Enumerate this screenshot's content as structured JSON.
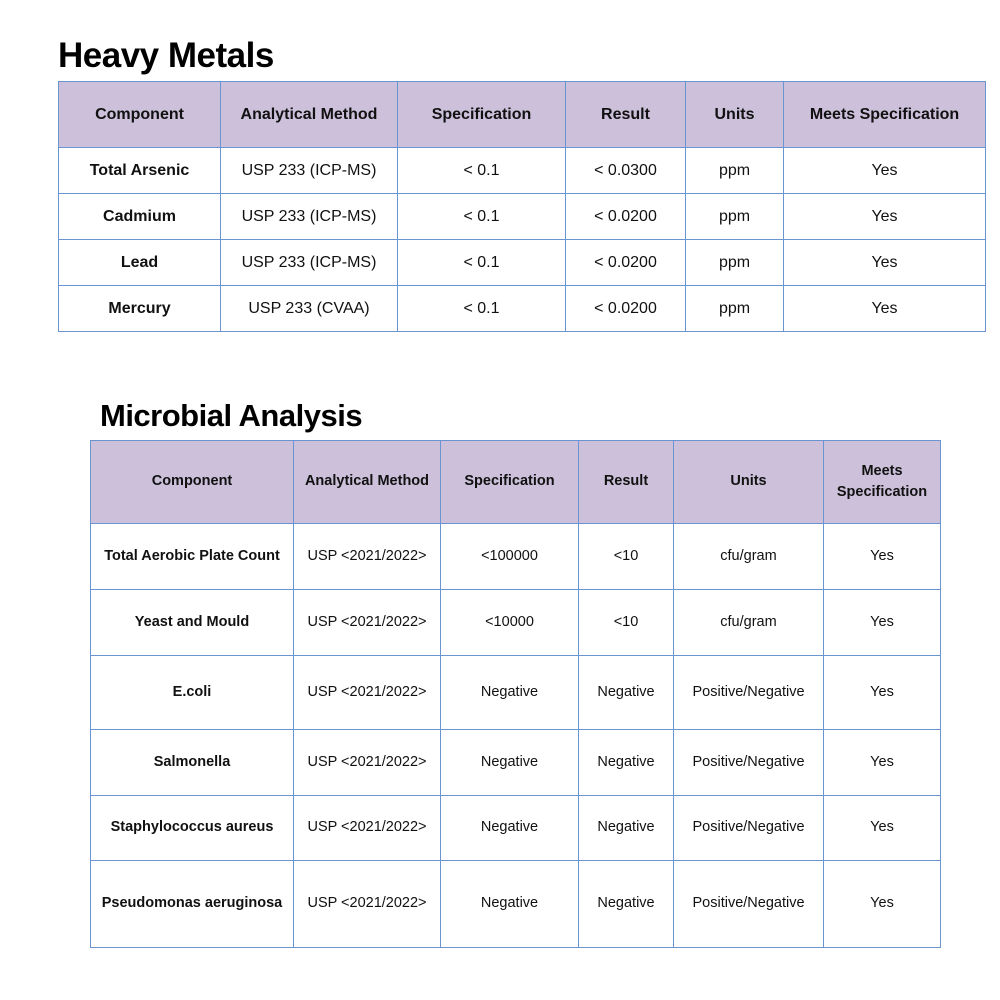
{
  "heavy_metals": {
    "title": "Heavy Metals",
    "headers": [
      "Component",
      "Analytical Method",
      "Specification",
      "Result",
      "Units",
      "Meets Specification"
    ],
    "rows": [
      [
        "Total Arsenic",
        "USP 233 (ICP-MS)",
        "< 0.1",
        "< 0.0300",
        "ppm",
        "Yes"
      ],
      [
        "Cadmium",
        "USP 233 (ICP-MS)",
        "< 0.1",
        "< 0.0200",
        "ppm",
        "Yes"
      ],
      [
        "Lead",
        "USP 233 (ICP-MS)",
        "< 0.1",
        "< 0.0200",
        "ppm",
        "Yes"
      ],
      [
        "Mercury",
        "USP 233 (CVAA)",
        "< 0.1",
        "< 0.0200",
        "ppm",
        "Yes"
      ]
    ]
  },
  "microbial": {
    "title": "Microbial Analysis",
    "headers": [
      "Component",
      "Analytical Method",
      "Specification",
      "Result",
      "Units",
      "Meets Specification"
    ],
    "rows": [
      [
        "Total Aerobic Plate Count",
        "USP <2021/2022>",
        "<100000",
        "<10",
        "cfu/gram",
        "Yes"
      ],
      [
        "Yeast and Mould",
        "USP <2021/2022>",
        "<10000",
        "<10",
        "cfu/gram",
        "Yes"
      ],
      [
        "E.coli",
        "USP <2021/2022>",
        "Negative",
        "Negative",
        "Positive/Negative",
        "Yes"
      ],
      [
        "Salmonella",
        "USP <2021/2022>",
        "Negative",
        "Negative",
        "Positive/Negative",
        "Yes"
      ],
      [
        "Staphylococcus aureus",
        "USP <2021/2022>",
        "Negative",
        "Negative",
        "Positive/Negative",
        "Yes"
      ],
      [
        "Pseudomonas aeruginosa",
        "USP <2021/2022>",
        "Negative",
        "Negative",
        "Positive/Negative",
        "Yes"
      ]
    ]
  },
  "colors": {
    "header_bg": "#ccc0da",
    "border": "#6a95d0"
  }
}
